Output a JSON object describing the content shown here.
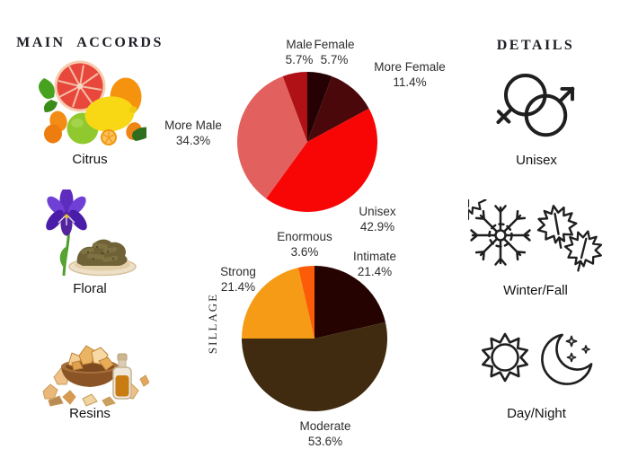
{
  "accords": {
    "title": "MAIN ACCORDS",
    "items": [
      {
        "label": "Citrus",
        "icon": "citrus-fruits-photo"
      },
      {
        "label": "Floral",
        "icon": "iris-orris-photo"
      },
      {
        "label": "Resins",
        "icon": "resin-bowl-photo"
      }
    ]
  },
  "details": {
    "title": "DETAILS",
    "items": [
      {
        "label": "Unisex",
        "icon": "unisex-gender-icon"
      },
      {
        "label": "Winter/Fall",
        "icon": "snowflake-maple-leaves-icon"
      },
      {
        "label": "Day/Night",
        "icon": "sun-moon-icon"
      }
    ]
  },
  "chart_data": [
    {
      "type": "pie",
      "name": "gender-audience",
      "title": "",
      "categories": [
        "Female",
        "More Female",
        "Unisex",
        "More Male",
        "Male"
      ],
      "values": [
        5.7,
        11.4,
        42.9,
        34.3,
        5.7
      ],
      "colors": [
        "#250104",
        "#4a080a",
        "#f80505",
        "#e2615e",
        "#b01116"
      ],
      "start_angle_deg": 0,
      "direction": "clockwise",
      "legend_position": "outside-labels",
      "label_map": {
        "male": {
          "name": "Male",
          "pct": "5.7%"
        },
        "female": {
          "name": "Female",
          "pct": "5.7%"
        },
        "more_female": {
          "name": "More Female",
          "pct": "11.4%"
        },
        "unisex": {
          "name": "Unisex",
          "pct": "42.9%"
        },
        "more_male": {
          "name": "More Male",
          "pct": "34.3%"
        }
      }
    },
    {
      "type": "pie",
      "name": "sillage",
      "axis_label": "SILLAGE",
      "categories": [
        "Intimate",
        "Moderate",
        "Strong",
        "Enormous"
      ],
      "values": [
        21.4,
        53.6,
        21.4,
        3.6
      ],
      "colors": [
        "#250300",
        "#402b10",
        "#f59b15",
        "#fc5c07"
      ],
      "start_angle_deg": 0,
      "direction": "clockwise",
      "legend_position": "outside-labels",
      "label_map": {
        "intimate": {
          "name": "Intimate",
          "pct": "21.4%"
        },
        "moderate": {
          "name": "Moderate",
          "pct": "53.6%"
        },
        "strong": {
          "name": "Strong",
          "pct": "21.4%"
        },
        "enormous": {
          "name": "Enormous",
          "pct": "3.6%"
        }
      }
    }
  ]
}
